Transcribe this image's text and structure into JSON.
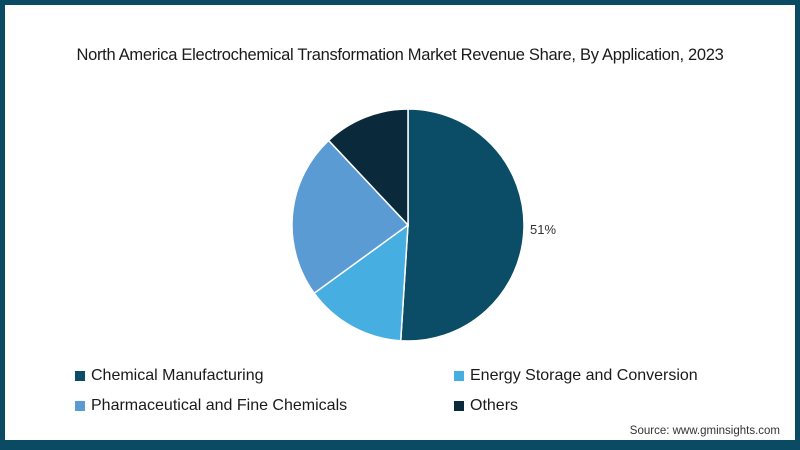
{
  "chart_data": {
    "type": "pie",
    "title": "North America Electrochemical Transformation Market Revenue Share, By Application, 2023",
    "categories": [
      "Chemical Manufacturing",
      "Energy Storage and Conversion",
      "Pharmaceutical and Fine Chemicals",
      "Others"
    ],
    "values": [
      51,
      14,
      23,
      12
    ],
    "colors": [
      "#0b4d66",
      "#47aee2",
      "#5a9bd4",
      "#0a2a3c"
    ],
    "data_labels": [
      {
        "category": "Chemical Manufacturing",
        "text": "51%"
      }
    ],
    "legend_position": "bottom"
  },
  "header": {
    "title": "North America Electrochemical Transformation Market Revenue Share, By Application, 2023"
  },
  "pie_label": "51%",
  "legend": [
    {
      "label": "Chemical Manufacturing",
      "color": "#0b4d66"
    },
    {
      "label": "Energy Storage and Conversion",
      "color": "#47aee2"
    },
    {
      "label": "Pharmaceutical and Fine Chemicals",
      "color": "#5a9bd4"
    },
    {
      "label": "Others",
      "color": "#0a2a3c"
    }
  ],
  "footer": {
    "source": "Source: www.gminsights.com"
  }
}
